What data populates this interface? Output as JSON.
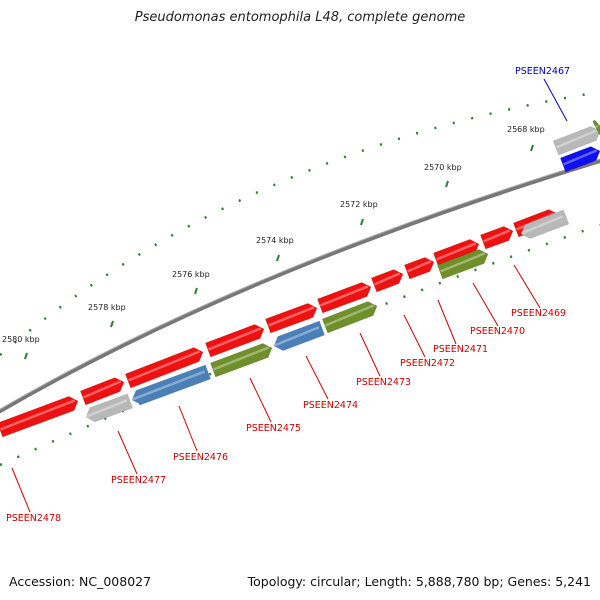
{
  "title": "Pseudomonas entomophila L48, complete genome",
  "footer": {
    "accession": "Accession: NC_008027",
    "summary": "Topology: circular; Length: 5,888,780 bp; Genes: 5,241"
  },
  "colors": {
    "backbone": "#7a7a7a",
    "tick_major": "#2e7d32",
    "red": "#ee1111",
    "grey": "#b8b8b8",
    "blue": "#4a80b8",
    "green": "#6f8f2a",
    "darkblue": "#1010ee",
    "label_red": "#cc0000",
    "label_blue": "#0000cc"
  },
  "kbp_ticks": [
    "2568 kbp",
    "2570 kbp",
    "2572 kbp",
    "2574 kbp",
    "2576 kbp",
    "2578 kbp",
    "2580 kbp"
  ],
  "genes": [
    {
      "label": "PSEEN2467",
      "color": "darkblue",
      "label_color": "label_blue"
    },
    {
      "label": "PSEEN2469",
      "color": "grey",
      "label_color": "label_red"
    },
    {
      "label": "PSEEN2470",
      "color": "green",
      "label_color": "label_red"
    },
    {
      "label": "PSEEN2471",
      "color": "red",
      "label_color": "label_red"
    },
    {
      "label": "PSEEN2472",
      "color": "red",
      "label_color": "label_red"
    },
    {
      "label": "PSEEN2473",
      "color": "green",
      "label_color": "label_red"
    },
    {
      "label": "PSEEN2474",
      "color": "blue",
      "label_color": "label_red"
    },
    {
      "label": "PSEEN2475",
      "color": "green",
      "label_color": "label_red"
    },
    {
      "label": "PSEEN2476",
      "color": "blue",
      "label_color": "label_red"
    },
    {
      "label": "PSEEN2477",
      "color": "grey",
      "label_color": "label_red"
    },
    {
      "label": "PSEEN2478",
      "color": "red",
      "label_color": "label_red"
    }
  ]
}
